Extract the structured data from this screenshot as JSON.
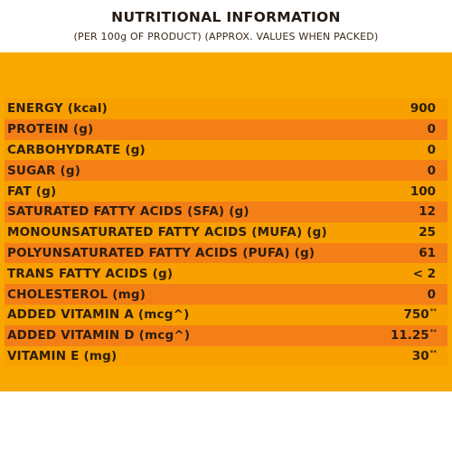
{
  "title": "NUTRITIONAL INFORMATION",
  "subtitle": "(PER 100g OF PRODUCT) (APPROX. VALUES WHEN PACKED)",
  "rows": [
    {
      "label": "ENERGY (kcal)",
      "value": "900",
      "mark": ""
    },
    {
      "label": "PROTEIN (g)",
      "value": "0",
      "mark": ""
    },
    {
      "label": "CARBOHYDRATE (g)",
      "value": "0",
      "mark": ""
    },
    {
      "label": "SUGAR (g)",
      "value": "0",
      "mark": ""
    },
    {
      "label": "FAT (g)",
      "value": "100",
      "mark": ""
    },
    {
      "label": "SATURATED FATTY ACIDS (SFA) (g)",
      "value": "12",
      "mark": ""
    },
    {
      "label": "MONOUNSATURATED FATTY ACIDS (MUFA) (g)",
      "value": "25",
      "mark": ""
    },
    {
      "label": "POLYUNSATURATED FATTY ACIDS (PUFA) (g)",
      "value": "61",
      "mark": ""
    },
    {
      "label": "TRANS FATTY ACIDS (g)",
      "value": "< 2",
      "mark": ""
    },
    {
      "label": "CHOLESTEROL (mg)",
      "value": "0",
      "mark": ""
    },
    {
      "label": "ADDED VITAMIN A (mcg^)",
      "value": "750",
      "mark": "**"
    },
    {
      "label": "ADDED VITAMIN D (mcg^)",
      "value": "11.25",
      "mark": "**"
    },
    {
      "label": "VITAMIN E (mg)",
      "value": "30",
      "mark": "**"
    }
  ]
}
